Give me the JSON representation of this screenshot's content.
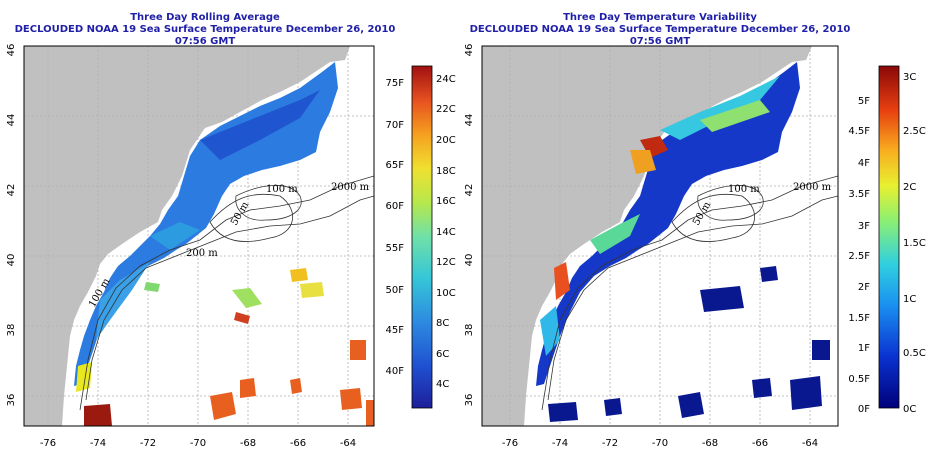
{
  "panels": [
    {
      "title": "Three Day Rolling Average",
      "subtitle": "DECLOUDED NOAA 19 Sea Surface Temperature December 26, 2010 07:56 GMT",
      "colorbar_left": [
        "75F",
        "70F",
        "65F",
        "60F",
        "55F",
        "50F",
        "45F",
        "40F"
      ],
      "colorbar_right": [
        "24C",
        "22C",
        "20C",
        "18C",
        "16C",
        "14C",
        "12C",
        "10C",
        "8C",
        "6C",
        "4C"
      ]
    },
    {
      "title": "Three Day Temperature Variability",
      "subtitle": "DECLOUDED NOAA 19 Sea Surface Temperature December 26, 2010 07:56 GMT",
      "colorbar_left": [
        "5F",
        "4.5F",
        "4F",
        "3.5F",
        "3F",
        "2.5F",
        "2F",
        "1.5F",
        "1F",
        "0.5F",
        "0F"
      ],
      "colorbar_right": [
        "3C",
        "2.5C",
        "2C",
        "1.5C",
        "1C",
        "0.5C",
        "0C"
      ]
    }
  ],
  "axes": {
    "x_ticks": [
      "-76",
      "-74",
      "-72",
      "-70",
      "-68",
      "-66",
      "-64"
    ],
    "y_ticks": [
      "46",
      "44",
      "42",
      "40",
      "38",
      "36"
    ]
  },
  "contours": {
    "labels": [
      "2000 m",
      "100 m",
      "50 m",
      "200 m",
      "100 m"
    ]
  },
  "colors": {
    "land": "#c0c0c0",
    "title": "#1f1fa8",
    "grid": "#b0b0b0"
  }
}
